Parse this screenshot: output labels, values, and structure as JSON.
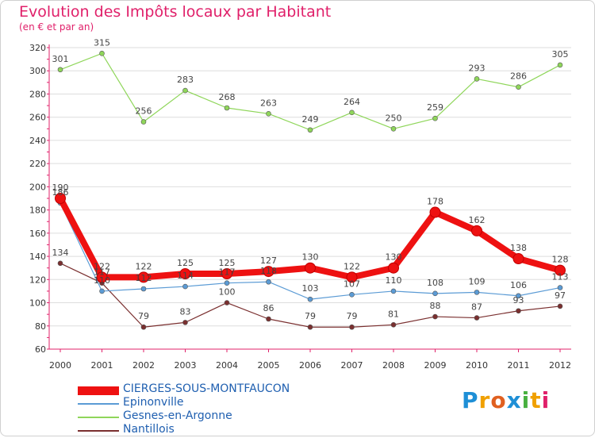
{
  "chart_data": {
    "type": "line",
    "title": "Evolution des Impôts locaux par Habitant",
    "subtitle": "(en € et par an)",
    "categories": [
      "2000",
      "2001",
      "2002",
      "2003",
      "2004",
      "2005",
      "2006",
      "2007",
      "2008",
      "2009",
      "2010",
      "2011",
      "2012"
    ],
    "yticks": [
      60,
      80,
      100,
      120,
      140,
      160,
      180,
      200,
      220,
      240,
      260,
      280,
      300,
      320
    ],
    "ylim": [
      60,
      320
    ],
    "series": [
      {
        "name": "CIERGES-SOUS-MONTFAUCON",
        "color": "#ee1111",
        "values": [
          190,
          122,
          122,
          125,
          125,
          127,
          130,
          122,
          130,
          178,
          162,
          138,
          128
        ]
      },
      {
        "name": "Epinonville",
        "color": "#5b9bd5",
        "values": [
          186,
          110,
          112,
          114,
          117,
          118,
          103,
          107,
          110,
          108,
          109,
          106,
          113
        ]
      },
      {
        "name": "Gesnes-en-Argonne",
        "color": "#8fd65a",
        "values": [
          301,
          315,
          256,
          283,
          268,
          263,
          249,
          264,
          250,
          259,
          293,
          286,
          305
        ]
      },
      {
        "name": "Nantillois",
        "color": "#7a2f2f",
        "values": [
          134,
          117,
          79,
          83,
          100,
          86,
          79,
          79,
          81,
          88,
          87,
          93,
          97
        ]
      }
    ],
    "labels": [
      [
        "190",
        "122",
        "122",
        "125",
        "125",
        "127",
        "130",
        "122",
        "130",
        "178",
        "162",
        "138",
        "128"
      ],
      [
        "186",
        "110",
        "112",
        "114",
        "117",
        "118",
        "103",
        "107",
        "110",
        "108",
        "109",
        "106",
        "113"
      ],
      [
        "301",
        "315",
        "256",
        "283",
        "268",
        "263",
        "249",
        "264",
        "250",
        "259",
        "293",
        "286",
        "305"
      ],
      [
        "134",
        "117",
        "79",
        "83",
        "100",
        "86",
        "79",
        "79",
        "81",
        "88",
        "87",
        "93",
        "97"
      ]
    ]
  },
  "legend": {
    "items": [
      "CIERGES-SOUS-MONTFAUCON",
      "Epinonville",
      "Gesnes-en-Argonne",
      "Nantillois"
    ]
  },
  "logo": {
    "text": "Proxiti"
  }
}
